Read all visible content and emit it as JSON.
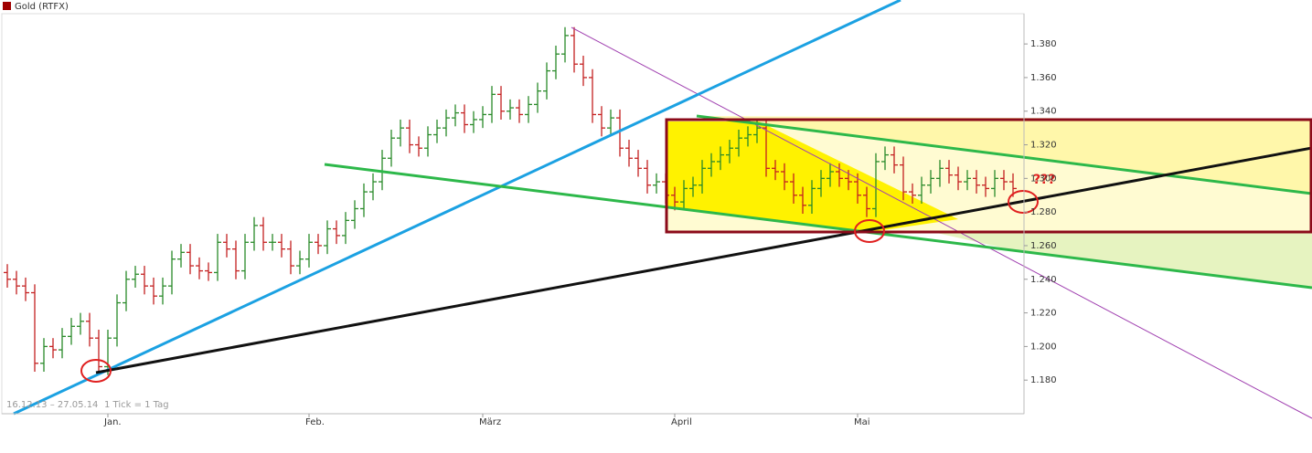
{
  "chart_data": {
    "type": "ohlc",
    "title": "Gold (RTFX)",
    "title_color": "#a00000",
    "date_range": "16.12.13 – 27.05.14",
    "tick_info": "1 Tick = 1 Tag",
    "annotation": "???",
    "up_color": "#2a8a2a",
    "down_color": "#c42020",
    "categories": [
      null,
      null,
      null,
      null,
      null,
      null,
      null,
      null,
      null,
      null,
      null,
      "Jan.",
      null,
      null,
      null,
      null,
      null,
      null,
      null,
      null,
      null,
      null,
      null,
      null,
      null,
      null,
      null,
      null,
      null,
      null,
      null,
      null,
      null,
      "Feb.",
      null,
      null,
      null,
      null,
      null,
      null,
      null,
      null,
      null,
      null,
      null,
      null,
      null,
      null,
      null,
      null,
      null,
      null,
      "März",
      null,
      null,
      null,
      null,
      null,
      null,
      null,
      null,
      null,
      null,
      null,
      null,
      null,
      null,
      null,
      null,
      null,
      null,
      null,
      null,
      "April",
      null,
      null,
      null,
      null,
      null,
      null,
      null,
      null,
      null,
      null,
      null,
      null,
      null,
      null,
      null,
      null,
      null,
      null,
      null,
      "Mai",
      null,
      null,
      null,
      null,
      null,
      null,
      null,
      null,
      null,
      null,
      null,
      null,
      null,
      null,
      null,
      null,
      null
    ],
    "open": [
      1244,
      1240,
      1236,
      1232,
      1190,
      1200,
      1198,
      1206,
      1212,
      1215,
      1205,
      1188,
      1205,
      1226,
      1240,
      1243,
      1236,
      1230,
      1236,
      1252,
      1256,
      1248,
      1245,
      1244,
      1262,
      1258,
      1245,
      1262,
      1272,
      1262,
      1262,
      1258,
      1248,
      1252,
      1262,
      1260,
      1270,
      1266,
      1275,
      1282,
      1292,
      1298,
      1312,
      1324,
      1330,
      1320,
      1318,
      1326,
      1330,
      1336,
      1339,
      1332,
      1335,
      1338,
      1350,
      1340,
      1342,
      1338,
      1344,
      1352,
      1364,
      1374,
      1385,
      1368,
      1360,
      1338,
      1330,
      1336,
      1318,
      1312,
      1306,
      1296,
      1298,
      1290,
      1286,
      1294,
      1296,
      1306,
      1310,
      1314,
      1318,
      1324,
      1326,
      1330,
      1306,
      1304,
      1298,
      1290,
      1284,
      1294,
      1300,
      1304,
      1300,
      1298,
      1290,
      1282,
      1310,
      1314,
      1308,
      1292,
      1290,
      1296,
      1300,
      1306,
      1302,
      1298,
      1300,
      1296,
      1294,
      1300,
      1298
    ],
    "high": [
      1249,
      1245,
      1241,
      1237,
      1205,
      1205,
      1211,
      1217,
      1220,
      1220,
      1210,
      1210,
      1231,
      1245,
      1248,
      1248,
      1241,
      1241,
      1257,
      1261,
      1261,
      1253,
      1250,
      1267,
      1267,
      1263,
      1267,
      1277,
      1277,
      1267,
      1267,
      1263,
      1257,
      1267,
      1267,
      1275,
      1275,
      1280,
      1287,
      1297,
      1303,
      1317,
      1329,
      1335,
      1335,
      1325,
      1331,
      1335,
      1341,
      1344,
      1344,
      1340,
      1343,
      1355,
      1355,
      1347,
      1347,
      1349,
      1357,
      1369,
      1379,
      1390,
      1390,
      1373,
      1365,
      1343,
      1341,
      1341,
      1323,
      1317,
      1311,
      1303,
      1303,
      1295,
      1299,
      1301,
      1311,
      1315,
      1319,
      1323,
      1329,
      1331,
      1335,
      1335,
      1311,
      1309,
      1303,
      1295,
      1299,
      1305,
      1309,
      1309,
      1305,
      1303,
      1295,
      1315,
      1319,
      1319,
      1313,
      1297,
      1301,
      1305,
      1311,
      1311,
      1307,
      1305,
      1305,
      1301,
      1305,
      1305,
      1303
    ],
    "low": [
      1235,
      1231,
      1227,
      1185,
      1185,
      1193,
      1193,
      1201,
      1207,
      1200,
      1183,
      1183,
      1200,
      1221,
      1235,
      1231,
      1225,
      1225,
      1231,
      1247,
      1243,
      1240,
      1239,
      1239,
      1253,
      1240,
      1240,
      1257,
      1257,
      1257,
      1253,
      1243,
      1243,
      1247,
      1255,
      1255,
      1261,
      1261,
      1270,
      1277,
      1287,
      1293,
      1307,
      1319,
      1315,
      1313,
      1313,
      1321,
      1325,
      1331,
      1327,
      1327,
      1330,
      1333,
      1335,
      1335,
      1333,
      1333,
      1339,
      1347,
      1359,
      1369,
      1363,
      1355,
      1333,
      1325,
      1325,
      1313,
      1307,
      1301,
      1291,
      1291,
      1285,
      1281,
      1281,
      1289,
      1291,
      1301,
      1305,
      1309,
      1313,
      1319,
      1321,
      1301,
      1299,
      1293,
      1285,
      1279,
      1279,
      1289,
      1295,
      1295,
      1293,
      1285,
      1277,
      1277,
      1305,
      1303,
      1287,
      1285,
      1285,
      1291,
      1295,
      1297,
      1293,
      1293,
      1291,
      1289,
      1289,
      1293,
      1289
    ],
    "close": [
      1240,
      1236,
      1232,
      1190,
      1200,
      1198,
      1206,
      1212,
      1215,
      1205,
      1188,
      1205,
      1226,
      1240,
      1243,
      1236,
      1230,
      1236,
      1252,
      1256,
      1248,
      1245,
      1244,
      1262,
      1258,
      1245,
      1262,
      1272,
      1262,
      1262,
      1258,
      1248,
      1252,
      1262,
      1260,
      1270,
      1266,
      1275,
      1282,
      1292,
      1298,
      1312,
      1324,
      1330,
      1320,
      1318,
      1326,
      1330,
      1336,
      1339,
      1332,
      1335,
      1338,
      1350,
      1340,
      1342,
      1338,
      1344,
      1352,
      1364,
      1374,
      1385,
      1368,
      1360,
      1338,
      1330,
      1336,
      1318,
      1312,
      1306,
      1296,
      1298,
      1290,
      1286,
      1294,
      1296,
      1306,
      1310,
      1314,
      1318,
      1324,
      1326,
      1330,
      1306,
      1304,
      1298,
      1290,
      1284,
      1294,
      1300,
      1304,
      1300,
      1298,
      1290,
      1282,
      1310,
      1314,
      1308,
      1292,
      1290,
      1296,
      1300,
      1306,
      1302,
      1298,
      1300,
      1296,
      1294,
      1300,
      1298,
      1294
    ],
    "ylim": [
      1160,
      1398
    ],
    "yticks": [
      {
        "value": 1180,
        "label": "1.180"
      },
      {
        "value": 1200,
        "label": "1.200"
      },
      {
        "value": 1220,
        "label": "1.220"
      },
      {
        "value": 1240,
        "label": "1.240"
      },
      {
        "value": 1260,
        "label": "1.260"
      },
      {
        "value": 1280,
        "label": "1.280"
      },
      {
        "value": 1300,
        "label": "1.300"
      },
      {
        "value": 1320,
        "label": "1.320"
      },
      {
        "value": 1340,
        "label": "1.340"
      },
      {
        "value": 1360,
        "label": "1.360"
      },
      {
        "value": 1380,
        "label": "1.380"
      }
    ]
  }
}
